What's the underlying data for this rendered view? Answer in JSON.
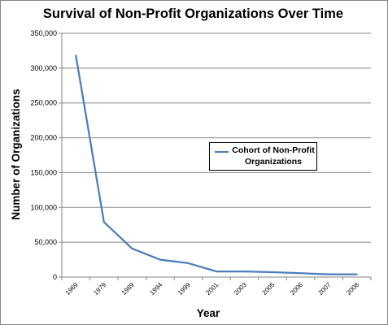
{
  "chart_data": {
    "type": "line",
    "title": "Survival of Non-Profit Organizations Over Time",
    "xlabel": "Year",
    "ylabel": "Number of Organizations",
    "categories": [
      "1969",
      "1979",
      "1989",
      "1994",
      "1999",
      "2001",
      "2003",
      "2005",
      "2006",
      "2007",
      "2008"
    ],
    "series": [
      {
        "name": "Cohort of Non-Profit Organizations",
        "color": "#4a7ebb",
        "values": [
          318000,
          79000,
          41000,
          25000,
          20000,
          8000,
          8000,
          7000,
          5500,
          4000,
          4000
        ]
      }
    ],
    "ylim": [
      0,
      350000
    ],
    "yticks": [
      "0",
      "50,000",
      "100,000",
      "150,000",
      "200,000",
      "250,000",
      "300,000",
      "350,000"
    ],
    "grid": true,
    "legend_position": "right"
  }
}
